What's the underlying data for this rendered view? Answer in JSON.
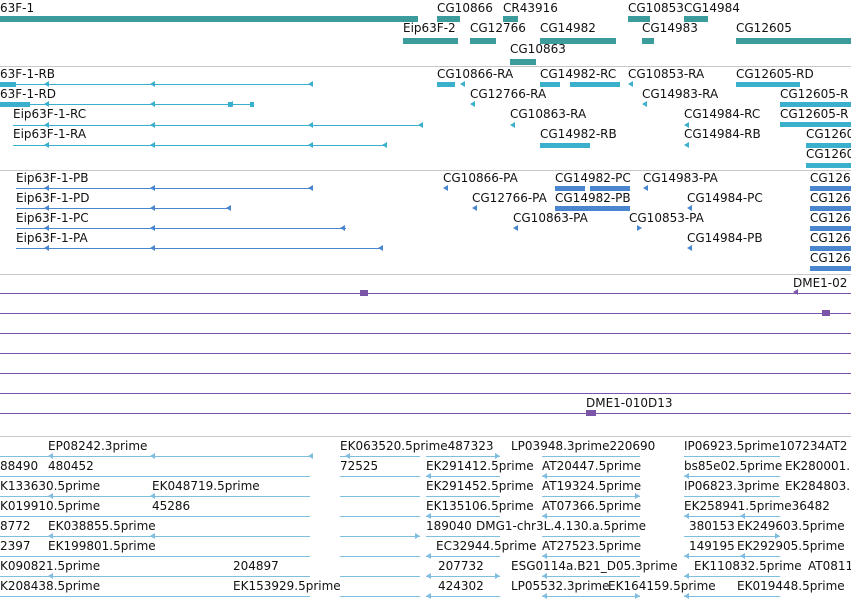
{
  "colors": {
    "genes": "#3c9c9c",
    "transcripts_a": "#3ab0cc",
    "transcripts_b": "#4a86d0",
    "clones": "#7a55a8",
    "ests": "#80bde0",
    "separator": "#c8c8d0",
    "label": "#111111"
  },
  "tracks": {
    "genes": [
      "63F-1",
      "CG10866",
      "CR43916",
      "CG10853",
      "CG14984",
      "Eip63F-2",
      "CG12766",
      "CG14982",
      "CG14983",
      "CG12605",
      "CG10863"
    ],
    "transcripts_a": [
      "63F-1-RB",
      "CG10866-RA",
      "CG14982-RC",
      "CG10853-RA",
      "CG12605-RD",
      "63F-1-RD",
      "CG12766-RA",
      "CG14983-RA",
      "CG12605-R",
      "Eip63F-1-RC",
      "CG10863-RA",
      "CG14984-RC",
      "CG12605-R",
      "Eip63F-1-RA",
      "CG14982-RB",
      "CG14984-RB",
      "CG1260",
      "CG1260"
    ],
    "transcripts_b": [
      "Eip63F-1-PB",
      "CG10866-PA",
      "CG14982-PC",
      "CG14983-PA",
      "CG126",
      "Eip63F-1-PD",
      "CG12766-PA",
      "CG14982-PB",
      "CG14984-PC",
      "CG126",
      "Eip63F-1-PC",
      "CG10863-PA",
      "CG10853-PA",
      "CG126",
      "Eip63F-1-PA",
      "CG14984-PB",
      "CG126",
      "CG126"
    ],
    "clones": [
      "DME1-02",
      "DME1-010D13"
    ],
    "ests": [
      "EP08242.3prime",
      "EK063520.5prime487323",
      "LP03948.3prime220690",
      "IP06923.5prime107234AT2",
      "88490",
      "480452",
      "72525",
      "EK291412.5prime",
      "AT20447.5prime",
      "bs85e02.5prime",
      "EK280001.",
      "K133630.5prime",
      "EK048719.5prime",
      "EK291452.5prime",
      "AT19324.5prime",
      "IP06823.3prime",
      "EK284803.",
      "K019910.5prime",
      "45286",
      "EK135106.5prime",
      "AT07366.5prime",
      "EK258941.5prime36482",
      "8772",
      "EK038855.5prime",
      "189040",
      "DMG1-chr3L.4.130.a.5prime",
      "380153",
      "EK249603.5prime",
      "2397",
      "EK199801.5prime",
      "EC32944.5prime",
      "AT27523.5prime",
      "149195",
      "EK292905.5prime",
      "K090821.5prime",
      "204897",
      "207732",
      "ESG0114a.B21_D05.3prime",
      "EK110832.5prime",
      "AT0811",
      "K208438.5prime",
      "EK153929.5prime",
      "424302",
      "LP05532.3prime",
      "EK164159.5prime",
      "EK019448.5prime"
    ]
  }
}
